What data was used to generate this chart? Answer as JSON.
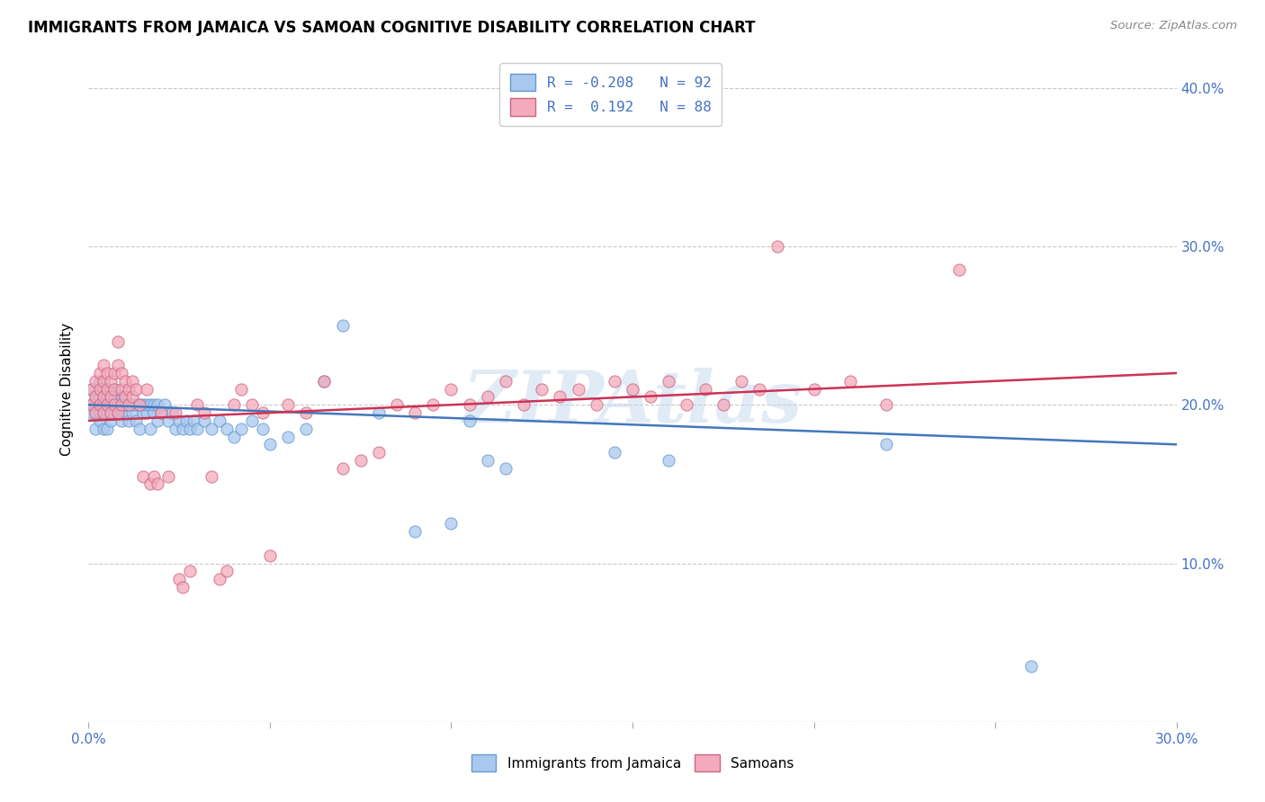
{
  "title": "IMMIGRANTS FROM JAMAICA VS SAMOAN COGNITIVE DISABILITY CORRELATION CHART",
  "source": "Source: ZipAtlas.com",
  "ylabel": "Cognitive Disability",
  "xlim": [
    0.0,
    0.3
  ],
  "ylim": [
    0.0,
    0.42
  ],
  "color_blue": "#A8C8F0",
  "color_pink": "#F4AABC",
  "edge_blue": "#6699CC",
  "edge_pink": "#CC6680",
  "trend_blue": "#4477BB",
  "trend_pink": "#CC3355",
  "watermark": "ZIPAtlas",
  "legend_line1": "R = -0.208   N = 92",
  "legend_line2": "R =  0.192   N = 88",
  "bottom_label1": "Immigrants from Jamaica",
  "bottom_label2": "Samoans",
  "jamaica_x": [
    0.001,
    0.001,
    0.001,
    0.002,
    0.002,
    0.002,
    0.002,
    0.003,
    0.003,
    0.003,
    0.003,
    0.003,
    0.003,
    0.004,
    0.004,
    0.004,
    0.004,
    0.004,
    0.005,
    0.005,
    0.005,
    0.005,
    0.005,
    0.006,
    0.006,
    0.006,
    0.006,
    0.007,
    0.007,
    0.007,
    0.007,
    0.008,
    0.008,
    0.008,
    0.009,
    0.009,
    0.009,
    0.01,
    0.01,
    0.01,
    0.011,
    0.011,
    0.012,
    0.012,
    0.013,
    0.013,
    0.014,
    0.014,
    0.015,
    0.015,
    0.016,
    0.016,
    0.017,
    0.017,
    0.018,
    0.018,
    0.019,
    0.019,
    0.02,
    0.021,
    0.022,
    0.023,
    0.024,
    0.025,
    0.026,
    0.027,
    0.028,
    0.029,
    0.03,
    0.032,
    0.034,
    0.036,
    0.038,
    0.04,
    0.042,
    0.045,
    0.048,
    0.05,
    0.055,
    0.06,
    0.065,
    0.07,
    0.08,
    0.09,
    0.1,
    0.105,
    0.11,
    0.115,
    0.145,
    0.16,
    0.22,
    0.26
  ],
  "jamaica_y": [
    0.2,
    0.21,
    0.195,
    0.185,
    0.205,
    0.2,
    0.195,
    0.19,
    0.205,
    0.215,
    0.195,
    0.2,
    0.21,
    0.185,
    0.195,
    0.205,
    0.2,
    0.21,
    0.185,
    0.2,
    0.195,
    0.205,
    0.21,
    0.19,
    0.2,
    0.195,
    0.205,
    0.2,
    0.195,
    0.205,
    0.21,
    0.195,
    0.2,
    0.205,
    0.19,
    0.2,
    0.205,
    0.195,
    0.2,
    0.205,
    0.19,
    0.2,
    0.195,
    0.2,
    0.19,
    0.2,
    0.185,
    0.2,
    0.195,
    0.2,
    0.195,
    0.2,
    0.185,
    0.2,
    0.195,
    0.2,
    0.19,
    0.2,
    0.195,
    0.2,
    0.19,
    0.195,
    0.185,
    0.19,
    0.185,
    0.19,
    0.185,
    0.19,
    0.185,
    0.19,
    0.185,
    0.19,
    0.185,
    0.18,
    0.185,
    0.19,
    0.185,
    0.175,
    0.18,
    0.185,
    0.215,
    0.25,
    0.195,
    0.12,
    0.125,
    0.19,
    0.165,
    0.16,
    0.17,
    0.165,
    0.175,
    0.035
  ],
  "samoan_x": [
    0.001,
    0.001,
    0.002,
    0.002,
    0.002,
    0.003,
    0.003,
    0.003,
    0.004,
    0.004,
    0.004,
    0.004,
    0.005,
    0.005,
    0.005,
    0.006,
    0.006,
    0.006,
    0.007,
    0.007,
    0.007,
    0.008,
    0.008,
    0.008,
    0.009,
    0.009,
    0.009,
    0.01,
    0.01,
    0.011,
    0.011,
    0.012,
    0.012,
    0.013,
    0.014,
    0.015,
    0.016,
    0.017,
    0.018,
    0.019,
    0.02,
    0.022,
    0.024,
    0.025,
    0.026,
    0.028,
    0.03,
    0.032,
    0.034,
    0.036,
    0.038,
    0.04,
    0.042,
    0.045,
    0.048,
    0.05,
    0.055,
    0.06,
    0.065,
    0.07,
    0.075,
    0.08,
    0.085,
    0.09,
    0.095,
    0.1,
    0.105,
    0.11,
    0.115,
    0.12,
    0.125,
    0.13,
    0.135,
    0.14,
    0.145,
    0.15,
    0.155,
    0.16,
    0.165,
    0.17,
    0.175,
    0.18,
    0.185,
    0.19,
    0.2,
    0.21,
    0.22,
    0.24
  ],
  "samoan_y": [
    0.2,
    0.21,
    0.195,
    0.205,
    0.215,
    0.2,
    0.21,
    0.22,
    0.195,
    0.205,
    0.215,
    0.225,
    0.2,
    0.21,
    0.22,
    0.195,
    0.205,
    0.215,
    0.2,
    0.21,
    0.22,
    0.195,
    0.24,
    0.225,
    0.2,
    0.21,
    0.22,
    0.205,
    0.215,
    0.2,
    0.21,
    0.215,
    0.205,
    0.21,
    0.2,
    0.155,
    0.21,
    0.15,
    0.155,
    0.15,
    0.195,
    0.155,
    0.195,
    0.09,
    0.085,
    0.095,
    0.2,
    0.195,
    0.155,
    0.09,
    0.095,
    0.2,
    0.21,
    0.2,
    0.195,
    0.105,
    0.2,
    0.195,
    0.215,
    0.16,
    0.165,
    0.17,
    0.2,
    0.195,
    0.2,
    0.21,
    0.2,
    0.205,
    0.215,
    0.2,
    0.21,
    0.205,
    0.21,
    0.2,
    0.215,
    0.21,
    0.205,
    0.215,
    0.2,
    0.21,
    0.2,
    0.215,
    0.21,
    0.3,
    0.21,
    0.215,
    0.2,
    0.285
  ]
}
